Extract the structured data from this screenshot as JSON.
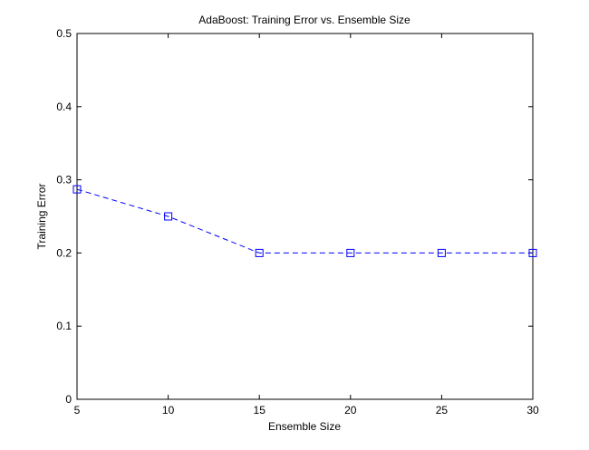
{
  "chart_data": {
    "type": "line",
    "title": "AdaBoost: Training Error vs. Ensemble Size",
    "xlabel": "Ensemble Size",
    "ylabel": "Training Error",
    "xlim": [
      5,
      30
    ],
    "ylim": [
      0,
      0.5
    ],
    "xticks": [
      5,
      10,
      15,
      20,
      25,
      30
    ],
    "yticks": [
      0,
      0.1,
      0.2,
      0.3,
      0.4,
      0.5
    ],
    "xtick_labels": [
      "5",
      "10",
      "15",
      "20",
      "25",
      "30"
    ],
    "ytick_labels": [
      "0",
      "0.1",
      "0.2",
      "0.3",
      "0.4",
      "0.5"
    ],
    "grid": false,
    "series": [
      {
        "x": [
          5,
          10,
          15,
          20,
          25,
          30
        ],
        "y": [
          0.287,
          0.25,
          0.2,
          0.2,
          0.2,
          0.2
        ],
        "color": "#0000ff",
        "line_style": "dashed",
        "marker": "square"
      }
    ]
  }
}
